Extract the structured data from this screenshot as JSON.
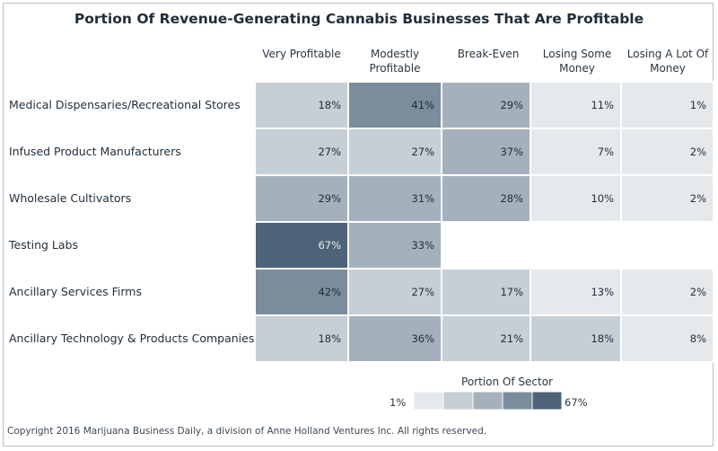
{
  "chart_data": {
    "type": "heatmap",
    "title": "Portion Of Revenue-Generating Cannabis Businesses That Are Profitable",
    "columns": [
      "Very Profitable",
      "Modestly Profitable",
      "Break-Even",
      "Losing Some Money",
      "Losing A Lot Of Money"
    ],
    "rows": [
      {
        "label": "Medical Dispensaries/Recreational Stores",
        "values": [
          18,
          41,
          29,
          11,
          1
        ]
      },
      {
        "label": "Infused Product Manufacturers",
        "values": [
          27,
          27,
          37,
          7,
          2
        ]
      },
      {
        "label": "Wholesale Cultivators",
        "values": [
          29,
          31,
          28,
          10,
          2
        ]
      },
      {
        "label": "Testing Labs",
        "values": [
          67,
          33,
          null,
          null,
          null
        ]
      },
      {
        "label": "Ancillary Services Firms",
        "values": [
          42,
          27,
          17,
          13,
          2
        ]
      },
      {
        "label": "Ancillary Technology & Products Companies",
        "values": [
          18,
          36,
          21,
          18,
          8
        ]
      }
    ],
    "value_suffix": "%",
    "legend": {
      "title": "Portion Of Sector",
      "min_label": "1%",
      "max_label": "67%",
      "min": 1,
      "max": 67,
      "steps": 5
    },
    "color_scale": [
      "#e6e9ec",
      "#c6ced6",
      "#a4b1bd",
      "#7b8c9d",
      "#4e6378"
    ]
  },
  "footer": {
    "copyright": "Copyright 2016 Marijuana Business Daily, a division of Anne Holland Ventures Inc. All rights reserved."
  }
}
